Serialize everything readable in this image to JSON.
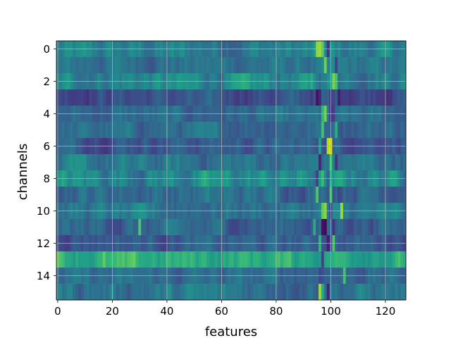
{
  "chart_data": {
    "type": "heatmap",
    "title": "",
    "xlabel": "features",
    "ylabel": "channels",
    "n_rows": 16,
    "n_cols": 128,
    "x_range": [
      -0.5,
      127.5
    ],
    "y_range": [
      -0.5,
      15.5
    ],
    "y_inverted": true,
    "x_ticks": [
      0,
      20,
      40,
      60,
      80,
      100,
      120
    ],
    "y_ticks": [
      0,
      2,
      4,
      6,
      8,
      10,
      12,
      14
    ],
    "grid": true,
    "colormap": "viridis",
    "value_range": [
      0,
      1
    ],
    "colormap_stops": [
      "#440154",
      "#482878",
      "#3e4989",
      "#31688e",
      "#26828e",
      "#1f9e89",
      "#35b779",
      "#6ece58",
      "#b5de2b",
      "#fde725"
    ],
    "row_base_values": [
      0.42,
      0.38,
      0.46,
      0.25,
      0.33,
      0.35,
      0.3,
      0.38,
      0.47,
      0.36,
      0.38,
      0.32,
      0.3,
      0.62,
      0.34,
      0.39
    ],
    "row_noise": [
      0.08,
      0.06,
      0.08,
      0.06,
      0.06,
      0.06,
      0.06,
      0.07,
      0.09,
      0.07,
      0.07,
      0.07,
      0.06,
      0.07,
      0.06,
      0.08
    ],
    "column_anomalies": [
      {
        "row": 0,
        "col": 95,
        "value": 0.82
      },
      {
        "row": 0,
        "col": 96,
        "value": 0.85
      },
      {
        "row": 0,
        "col": 97,
        "value": 0.75
      },
      {
        "row": 0,
        "col": 99,
        "value": 0.15
      },
      {
        "row": 1,
        "col": 98,
        "value": 0.78
      },
      {
        "row": 1,
        "col": 102,
        "value": 0.2
      },
      {
        "row": 2,
        "col": 93,
        "value": 0.6
      },
      {
        "row": 2,
        "col": 101,
        "value": 0.8
      },
      {
        "row": 2,
        "col": 102,
        "value": 0.7
      },
      {
        "row": 3,
        "col": 95,
        "value": 0.05
      },
      {
        "row": 3,
        "col": 96,
        "value": 0.1
      },
      {
        "row": 3,
        "col": 100,
        "value": 0.15
      },
      {
        "row": 3,
        "col": 103,
        "value": 0.08
      },
      {
        "row": 4,
        "col": 97,
        "value": 0.65
      },
      {
        "row": 4,
        "col": 98,
        "value": 0.78
      },
      {
        "row": 4,
        "col": 100,
        "value": 0.12
      },
      {
        "row": 4,
        "col": 101,
        "value": 0.2
      },
      {
        "row": 5,
        "col": 97,
        "value": 0.7
      },
      {
        "row": 5,
        "col": 102,
        "value": 0.62
      },
      {
        "row": 6,
        "col": 96,
        "value": 0.55
      },
      {
        "row": 6,
        "col": 99,
        "value": 0.88
      },
      {
        "row": 6,
        "col": 100,
        "value": 0.95
      },
      {
        "row": 6,
        "col": 101,
        "value": 0.3
      },
      {
        "row": 7,
        "col": 96,
        "value": 0.1
      },
      {
        "row": 7,
        "col": 100,
        "value": 0.7
      },
      {
        "row": 7,
        "col": 102,
        "value": 0.15
      },
      {
        "row": 8,
        "col": 95,
        "value": 0.2
      },
      {
        "row": 8,
        "col": 97,
        "value": 0.68
      },
      {
        "row": 8,
        "col": 99,
        "value": 0.3
      },
      {
        "row": 9,
        "col": 95,
        "value": 0.72
      },
      {
        "row": 9,
        "col": 100,
        "value": 0.7
      },
      {
        "row": 9,
        "col": 103,
        "value": 0.2
      },
      {
        "row": 10,
        "col": 97,
        "value": 0.75
      },
      {
        "row": 10,
        "col": 98,
        "value": 0.82
      },
      {
        "row": 10,
        "col": 104,
        "value": 0.85
      },
      {
        "row": 10,
        "col": 100,
        "value": 0.18
      },
      {
        "row": 11,
        "col": 30,
        "value": 0.72
      },
      {
        "row": 11,
        "col": 97,
        "value": 0.05
      },
      {
        "row": 11,
        "col": 98,
        "value": 0.02
      },
      {
        "row": 11,
        "col": 101,
        "value": 0.15
      },
      {
        "row": 11,
        "col": 94,
        "value": 0.6
      },
      {
        "row": 12,
        "col": 96,
        "value": 0.65
      },
      {
        "row": 12,
        "col": 99,
        "value": 0.08
      },
      {
        "row": 12,
        "col": 101,
        "value": 0.72
      },
      {
        "row": 13,
        "col": 0,
        "value": 0.78
      },
      {
        "row": 13,
        "col": 17,
        "value": 0.76
      },
      {
        "row": 13,
        "col": 85,
        "value": 0.72
      },
      {
        "row": 13,
        "col": 97,
        "value": 0.2
      },
      {
        "row": 14,
        "col": 96,
        "value": 0.22
      },
      {
        "row": 14,
        "col": 105,
        "value": 0.7
      },
      {
        "row": 15,
        "col": 96,
        "value": 0.85
      },
      {
        "row": 15,
        "col": 97,
        "value": 0.6
      },
      {
        "row": 15,
        "col": 99,
        "value": 0.1
      }
    ]
  }
}
